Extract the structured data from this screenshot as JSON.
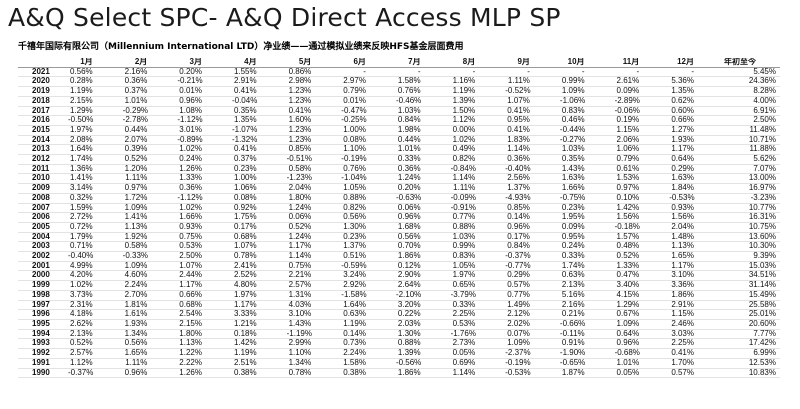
{
  "title": "A&Q Select SPC- A&Q Direct Access MLP SP",
  "subtitle": "千禧年国际有限公司（Millennium International LTD）净业绩——通过模拟业绩来反映HFS基金层面费用",
  "table": {
    "headers": [
      "",
      "1月",
      "2月",
      "3月",
      "4月",
      "5月",
      "6月",
      "7月",
      "8月",
      "9月",
      "10月",
      "11月",
      "12月",
      "年初至今"
    ],
    "rows": [
      [
        "2021",
        "0.56%",
        "2.16%",
        "0.20%",
        "1.55%",
        "0.86%",
        "-",
        "-",
        "-",
        "-",
        "-",
        "-",
        "-",
        "5.45%"
      ],
      [
        "2020",
        "0.28%",
        "0.36%",
        "-0.21%",
        "2.91%",
        "2.98%",
        "2.97%",
        "1.58%",
        "1.16%",
        "1.11%",
        "0.99%",
        "2.61%",
        "5.36%",
        "24.36%"
      ],
      [
        "2019",
        "1.19%",
        "0.37%",
        "0.01%",
        "0.41%",
        "1.23%",
        "0.79%",
        "0.76%",
        "1.19%",
        "-0.52%",
        "1.09%",
        "0.09%",
        "1.35%",
        "8.28%"
      ],
      [
        "2018",
        "2.15%",
        "1.01%",
        "0.96%",
        "-0.04%",
        "1.23%",
        "0.01%",
        "-0.46%",
        "1.39%",
        "1.07%",
        "-1.06%",
        "-2.89%",
        "0.62%",
        "4.00%"
      ],
      [
        "2017",
        "1.29%",
        "-0.29%",
        "1.08%",
        "0.35%",
        "0.41%",
        "-0.47%",
        "1.03%",
        "1.50%",
        "0.41%",
        "0.83%",
        "-0.06%",
        "0.60%",
        "6.91%"
      ],
      [
        "2016",
        "-0.50%",
        "-2.78%",
        "-1.12%",
        "1.35%",
        "1.60%",
        "-0.25%",
        "0.84%",
        "1.12%",
        "0.95%",
        "0.46%",
        "0.19%",
        "0.66%",
        "2.50%"
      ],
      [
        "2015",
        "1.97%",
        "0.44%",
        "3.01%",
        "-1.07%",
        "1.23%",
        "1.00%",
        "1.98%",
        "0.00%",
        "0.41%",
        "-0.44%",
        "1.15%",
        "1.27%",
        "11.48%"
      ],
      [
        "2014",
        "2.08%",
        "2.07%",
        "-0.89%",
        "-1.32%",
        "1.23%",
        "0.08%",
        "0.44%",
        "1.02%",
        "1.83%",
        "-0.27%",
        "2.06%",
        "1.93%",
        "10.71%"
      ],
      [
        "2013",
        "1.64%",
        "0.39%",
        "1.02%",
        "0.41%",
        "0.85%",
        "1.10%",
        "1.01%",
        "0.49%",
        "1.14%",
        "1.03%",
        "1.06%",
        "1.17%",
        "11.88%"
      ],
      [
        "2012",
        "1.74%",
        "0.52%",
        "0.24%",
        "0.37%",
        "-0.51%",
        "-0.19%",
        "0.33%",
        "0.82%",
        "0.36%",
        "0.35%",
        "0.79%",
        "0.64%",
        "5.62%"
      ],
      [
        "2011",
        "1.36%",
        "1.20%",
        "1.26%",
        "0.23%",
        "0.58%",
        "0.76%",
        "0.36%",
        "-0.84%",
        "-0.40%",
        "1.43%",
        "0.61%",
        "0.29%",
        "7.07%"
      ],
      [
        "2010",
        "1.41%",
        "1.11%",
        "1.33%",
        "1.00%",
        "-1.23%",
        "-1.04%",
        "1.24%",
        "1.14%",
        "2.56%",
        "1.63%",
        "1.53%",
        "1.63%",
        "13.00%"
      ],
      [
        "2009",
        "3.14%",
        "0.97%",
        "0.36%",
        "1.06%",
        "2.04%",
        "1.05%",
        "0.20%",
        "1.11%",
        "1.37%",
        "1.66%",
        "0.97%",
        "1.84%",
        "16.97%"
      ],
      [
        "2008",
        "0.32%",
        "1.72%",
        "-1.12%",
        "0.08%",
        "1.80%",
        "0.88%",
        "-0.63%",
        "-0.09%",
        "-4.93%",
        "-0.75%",
        "0.10%",
        "-0.53%",
        "-3.23%"
      ],
      [
        "2007",
        "1.59%",
        "1.09%",
        "1.02%",
        "0.92%",
        "1.24%",
        "0.82%",
        "0.06%",
        "-0.91%",
        "0.85%",
        "0.23%",
        "1.42%",
        "0.93%",
        "10.77%"
      ],
      [
        "2006",
        "2.72%",
        "1.41%",
        "1.66%",
        "1.75%",
        "0.06%",
        "0.56%",
        "0.96%",
        "0.77%",
        "0.14%",
        "1.95%",
        "1.56%",
        "1.56%",
        "16.31%"
      ],
      [
        "2005",
        "0.72%",
        "1.13%",
        "0.93%",
        "0.17%",
        "0.52%",
        "1.30%",
        "1.68%",
        "0.88%",
        "0.96%",
        "0.09%",
        "-0.18%",
        "2.04%",
        "10.75%"
      ],
      [
        "2004",
        "1.79%",
        "1.92%",
        "0.75%",
        "0.68%",
        "1.24%",
        "0.23%",
        "0.56%",
        "1.03%",
        "0.17%",
        "0.95%",
        "1.57%",
        "1.48%",
        "13.60%"
      ],
      [
        "2003",
        "0.71%",
        "0.58%",
        "0.53%",
        "1.07%",
        "1.17%",
        "1.37%",
        "0.70%",
        "0.99%",
        "0.84%",
        "0.24%",
        "0.48%",
        "1.13%",
        "10.30%"
      ],
      [
        "2002",
        "-0.40%",
        "-0.33%",
        "2.50%",
        "0.78%",
        "1.14%",
        "0.51%",
        "1.86%",
        "0.83%",
        "-0.37%",
        "0.33%",
        "0.52%",
        "1.65%",
        "9.39%"
      ],
      [
        "2001",
        "4.99%",
        "1.09%",
        "1.07%",
        "2.41%",
        "0.75%",
        "-0.59%",
        "0.12%",
        "1.05%",
        "-0.77%",
        "1.74%",
        "1.33%",
        "1.17%",
        "15.03%"
      ],
      [
        "2000",
        "4.20%",
        "4.60%",
        "2.44%",
        "2.52%",
        "2.21%",
        "3.24%",
        "2.90%",
        "1.97%",
        "0.29%",
        "0.63%",
        "0.47%",
        "3.10%",
        "34.51%"
      ],
      [
        "1999",
        "1.02%",
        "2.24%",
        "1.17%",
        "4.80%",
        "2.57%",
        "2.92%",
        "2.64%",
        "0.65%",
        "0.57%",
        "2.13%",
        "3.40%",
        "3.36%",
        "31.14%"
      ],
      [
        "1998",
        "3.73%",
        "2.70%",
        "0.66%",
        "1.97%",
        "1.31%",
        "-1.58%",
        "-2.10%",
        "-3.79%",
        "0.77%",
        "5.16%",
        "4.15%",
        "1.86%",
        "15.49%"
      ],
      [
        "1997",
        "2.31%",
        "1.81%",
        "0.68%",
        "1.17%",
        "4.03%",
        "1.64%",
        "3.20%",
        "0.33%",
        "1.49%",
        "2.16%",
        "1.29%",
        "2.91%",
        "25.58%"
      ],
      [
        "1996",
        "4.18%",
        "1.61%",
        "2.54%",
        "3.33%",
        "3.10%",
        "0.63%",
        "0.22%",
        "2.25%",
        "2.12%",
        "0.21%",
        "0.67%",
        "1.15%",
        "25.01%"
      ],
      [
        "1995",
        "2.62%",
        "1.93%",
        "2.15%",
        "1.21%",
        "1.43%",
        "1.19%",
        "2.03%",
        "0.53%",
        "2.02%",
        "-0.66%",
        "1.09%",
        "2.46%",
        "20.60%"
      ],
      [
        "1994",
        "2.13%",
        "1.34%",
        "1.80%",
        "0.18%",
        "-1.19%",
        "0.14%",
        "1.30%",
        "-1.76%",
        "0.07%",
        "-0.11%",
        "0.64%",
        "3.03%",
        "7.77%"
      ],
      [
        "1993",
        "0.52%",
        "0.56%",
        "1.13%",
        "1.42%",
        "2.99%",
        "0.73%",
        "0.88%",
        "2.73%",
        "1.09%",
        "0.91%",
        "0.96%",
        "2.25%",
        "17.42%"
      ],
      [
        "1992",
        "2.57%",
        "1.65%",
        "1.22%",
        "1.19%",
        "1.10%",
        "2.24%",
        "1.39%",
        "0.05%",
        "-2.37%",
        "-1.90%",
        "-0.68%",
        "0.41%",
        "6.99%"
      ],
      [
        "1991",
        "1.12%",
        "1.11%",
        "2.22%",
        "2.51%",
        "1.34%",
        "1.58%",
        "-0.56%",
        "0.69%",
        "-0.19%",
        "-0.65%",
        "1.01%",
        "1.70%",
        "12.53%"
      ],
      [
        "1990",
        "-0.37%",
        "0.96%",
        "1.26%",
        "0.38%",
        "0.78%",
        "0.38%",
        "1.86%",
        "1.14%",
        "-0.53%",
        "1.87%",
        "0.05%",
        "0.57%",
        "10.83%"
      ]
    ]
  }
}
